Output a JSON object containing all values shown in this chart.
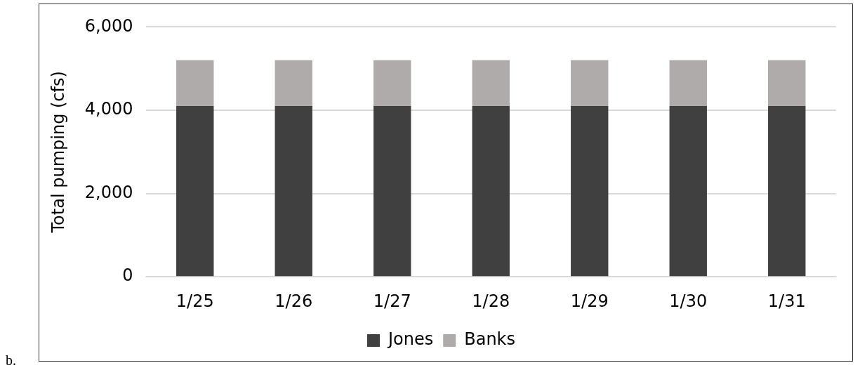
{
  "chart_data": {
    "type": "bar",
    "ylabel": "Total pumping (cfs)",
    "categories": [
      "1/25",
      "1/26",
      "1/27",
      "1/28",
      "1/29",
      "1/30",
      "1/31"
    ],
    "series": [
      {
        "name": "Jones",
        "color": "#404040",
        "values": [
          4100,
          4100,
          4100,
          4100,
          4100,
          4100,
          4100
        ]
      },
      {
        "name": "Banks",
        "color": "#afabab",
        "values": [
          1100,
          1100,
          1100,
          1100,
          1100,
          1100,
          1100
        ]
      }
    ],
    "stacked": true,
    "ylim": [
      0,
      6000
    ],
    "yticks": [
      0,
      {
        "value": 2000,
        "label": "2,000"
      },
      {
        "value": 4000,
        "label": "4,000"
      },
      {
        "value": 6000,
        "label": "6,000"
      }
    ],
    "grid": "y",
    "legend": "bottom",
    "annotations": [
      "b."
    ]
  }
}
